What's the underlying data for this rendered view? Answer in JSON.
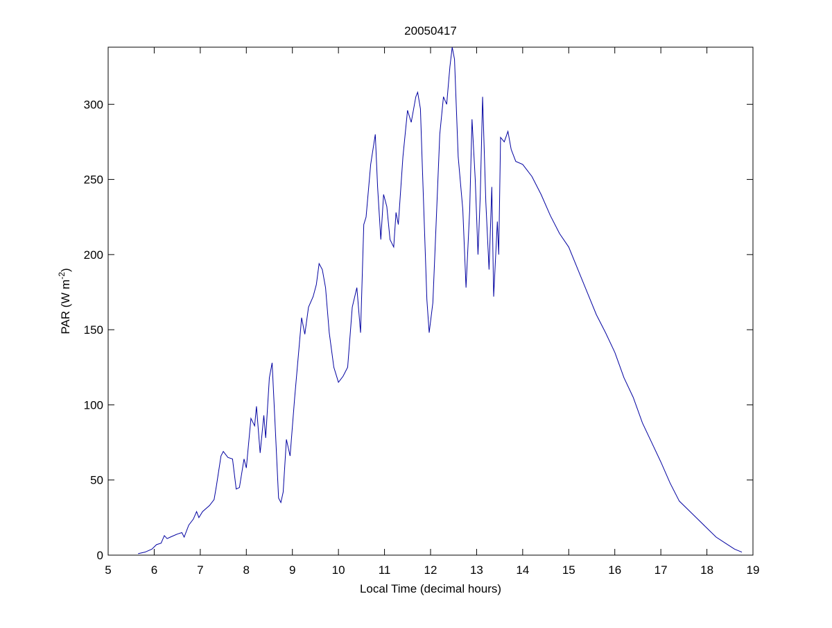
{
  "chart_data": {
    "type": "line",
    "title": "20050417",
    "xlabel": "Local Time (decimal hours)",
    "ylabel": [
      "PAR (W m",
      "-2",
      ")"
    ],
    "x": [
      5.65,
      5.8,
      5.95,
      6.05,
      6.15,
      6.22,
      6.28,
      6.35,
      6.5,
      6.6,
      6.65,
      6.75,
      6.85,
      6.92,
      6.97,
      7.05,
      7.2,
      7.3,
      7.35,
      7.45,
      7.5,
      7.6,
      7.7,
      7.78,
      7.85,
      7.95,
      8.0,
      8.1,
      8.18,
      8.22,
      8.3,
      8.38,
      8.42,
      8.5,
      8.56,
      8.62,
      8.7,
      8.75,
      8.8,
      8.87,
      8.95,
      9.05,
      9.15,
      9.2,
      9.27,
      9.35,
      9.45,
      9.52,
      9.58,
      9.65,
      9.72,
      9.8,
      9.9,
      10.0,
      10.1,
      10.2,
      10.3,
      10.4,
      10.48,
      10.55,
      10.6,
      10.7,
      10.8,
      10.85,
      10.92,
      10.98,
      11.05,
      11.12,
      11.2,
      11.25,
      11.3,
      11.4,
      11.5,
      11.58,
      11.68,
      11.72,
      11.78,
      11.82,
      11.92,
      11.97,
      12.05,
      12.12,
      12.2,
      12.28,
      12.35,
      12.42,
      12.47,
      12.52,
      12.6,
      12.7,
      12.77,
      12.85,
      12.9,
      12.97,
      13.03,
      13.08,
      13.13,
      13.2,
      13.27,
      13.33,
      13.37,
      13.45,
      13.48,
      13.52,
      13.6,
      13.68,
      13.75,
      13.85,
      14.0,
      14.2,
      14.4,
      14.6,
      14.8,
      15.0,
      15.2,
      15.4,
      15.6,
      15.8,
      16.0,
      16.2,
      16.4,
      16.6,
      16.8,
      17.0,
      17.2,
      17.4,
      17.6,
      17.8,
      18.0,
      18.2,
      18.4,
      18.6,
      18.76
    ],
    "series": [
      {
        "color": "#0000a0",
        "values": [
          1,
          2,
          4,
          7,
          8,
          13,
          11,
          12,
          14,
          15,
          12,
          20,
          24,
          29,
          25,
          29,
          33,
          37,
          46,
          66,
          69,
          65,
          64,
          44,
          45,
          64,
          58,
          91,
          86,
          99,
          68,
          93,
          78,
          118,
          128,
          90,
          38,
          35,
          42,
          77,
          66,
          105,
          140,
          158,
          147,
          165,
          172,
          180,
          194,
          190,
          178,
          148,
          125,
          115,
          119,
          125,
          165,
          178,
          148,
          220,
          225,
          260,
          280,
          245,
          210,
          240,
          232,
          210,
          205,
          228,
          220,
          265,
          296,
          288,
          305,
          308,
          297,
          260,
          170,
          148,
          168,
          220,
          280,
          305,
          300,
          325,
          338,
          330,
          265,
          230,
          178,
          230,
          290,
          250,
          200,
          240,
          305,
          235,
          190,
          245,
          172,
          222,
          200,
          278,
          275,
          282,
          270,
          262,
          260,
          252,
          240,
          226,
          214,
          205,
          190,
          175,
          160,
          148,
          135,
          118,
          105,
          88,
          75,
          62,
          48,
          36,
          30,
          24,
          18,
          12,
          8,
          4,
          2
        ]
      }
    ],
    "xlim": [
      5,
      19
    ],
    "xticks": [
      5,
      6,
      7,
      8,
      9,
      10,
      11,
      12,
      13,
      14,
      15,
      16,
      17,
      18,
      19
    ],
    "ylim": [
      0,
      338
    ],
    "yticks": [
      0,
      50,
      100,
      150,
      200,
      250,
      300
    ]
  }
}
